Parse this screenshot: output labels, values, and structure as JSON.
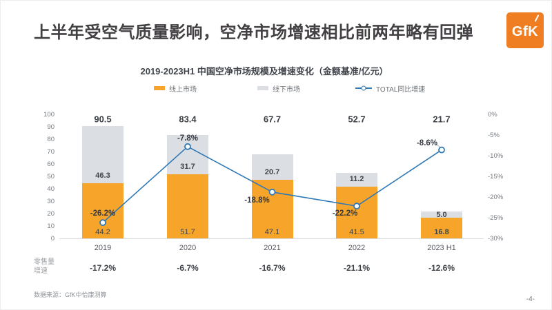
{
  "slide": {
    "title": "上半年受空气质量影响，空净市场增速相比前两年略有回弹",
    "source": "数据来源：GfK中怡康测算",
    "page_number": "-4-"
  },
  "logo": {
    "text": "GfK",
    "color": "#EF7D22"
  },
  "chart_data": {
    "type": "bar",
    "subtype": "stacked-bar-with-line",
    "title": "2019-2023H1 中国空净市场规模及增速变化（金额基准/亿元）",
    "categories": [
      "2019",
      "2020",
      "2021",
      "2022",
      "2023 H1"
    ],
    "series": [
      {
        "name": "线上市场",
        "type": "bar",
        "color": "#F7A52A",
        "values": [
          44.2,
          51.7,
          47.1,
          41.5,
          16.8
        ]
      },
      {
        "name": "线下市场",
        "type": "bar",
        "color": "#DBDEE3",
        "values": [
          46.3,
          31.7,
          20.7,
          11.2,
          5.0
        ]
      },
      {
        "name": "TOTAL同比增速",
        "type": "line",
        "color": "#2F79B6",
        "values_pct": [
          -26.2,
          -7.8,
          -18.8,
          -22.2,
          -8.6
        ]
      }
    ],
    "totals": [
      90.5,
      83.4,
      67.7,
      52.7,
      21.7
    ],
    "total_labels": [
      "90.5",
      "83.4",
      "67.7",
      "52.7",
      "21.7"
    ],
    "growth_labels": [
      "-26.2%",
      "-7.8%",
      "-18.8%",
      "-22.2%",
      "-8.6%"
    ],
    "left_axis": {
      "min": 0,
      "max": 100,
      "step": 10,
      "tick_labels": [
        "100",
        "90",
        "80",
        "70",
        "60",
        "50",
        "40",
        "30",
        "20",
        "10",
        "0"
      ]
    },
    "right_axis": {
      "min": -30,
      "max": 0,
      "step": 5,
      "tick_labels": [
        "0%",
        "-5%",
        "-10%",
        "-15%",
        "-20%",
        "-25%",
        "-30%"
      ]
    },
    "legend": [
      {
        "label": "线上市场",
        "color": "#F7A52A"
      },
      {
        "label": "线下市场",
        "color": "#DBDEE3"
      },
      {
        "label": "TOTAL同比增速",
        "color": "#2F79B6"
      }
    ],
    "grid": false,
    "legend_position": "top",
    "bottom_row": {
      "label_lines": [
        "零售量",
        "增速"
      ],
      "values": [
        "-17.2%",
        "-6.7%",
        "-16.7%",
        "-21.1%",
        "-12.6%"
      ]
    }
  }
}
